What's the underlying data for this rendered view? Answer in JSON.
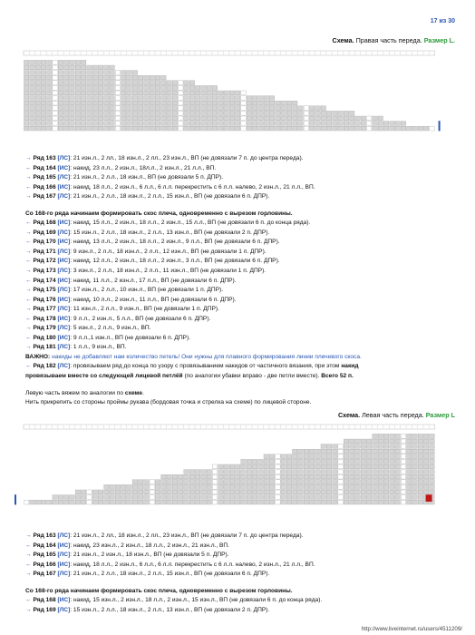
{
  "page_number": "17 из 30",
  "schemes": [
    {
      "title": "Схема.",
      "subtitle": "Правая часть переда.",
      "size": "Размер L."
    },
    {
      "title": "Схема.",
      "subtitle": "Левая часть переда.",
      "size": "Размер L"
    }
  ],
  "rows_a": [
    {
      "arrow": "→",
      "label": "Ряд 163",
      "side": "[ЛС]",
      "text": ": 21 изн.л., 2 лл., 18 изн.л., 2 лл., 23 изн.л., ВП (не довязали 7 п. до центра переда)."
    },
    {
      "arrow": "←",
      "label": "Ряд 164",
      "side": "[ИС]",
      "text": ": накид, 23 л.л., 2 изн.л., 18л.л., 2 изн.л., 21 л.л., ВП."
    },
    {
      "arrow": "→",
      "label": "Ряд 165",
      "side": "[ЛС]",
      "text": ": 21 изн.л., 2 л.л., 18 изн.л., ВП (не довязали 5 п. ДПР)."
    },
    {
      "arrow": "←",
      "label": "Ряд 166",
      "side": "[ИС]",
      "text": ": накид, 18 л.л., 2 изн.л., 6 л.л., 6 л.л. перекрестить с 6 л.л. налево, 2 изн.л., 21 л.л., ВП."
    },
    {
      "arrow": "→",
      "label": "Ряд 167",
      "side": "[ЛС]",
      "text": ": 21 изн.л., 2 л.л., 18 изн.л., 2 л.л., 15 изн.л., ВП (не довязали 6 п. ДПР)."
    }
  ],
  "note_a": "Со 168-го ряда начинаем формировать скос плеча, одновременно с вырезом горловины.",
  "rows_b": [
    {
      "arrow": "←",
      "label": "Ряд 168",
      "side": "[ИС]",
      "text": ": накид, 15 л.л., 2 изн.л., 18 л.л., 2 изн.л., 15 л.л., ВП (не довязали 6 п. до конца ряда)."
    },
    {
      "arrow": "→",
      "label": "Ряд 169",
      "side": "[ЛС]",
      "text": ": 15 изн.л., 2 л.л., 18 изн.л., 2 л.л., 13 изн.л., ВП (не довязали 2 п. ДПР)."
    },
    {
      "arrow": "←",
      "label": "Ряд 170",
      "side": "[ИС]",
      "text": ": накид, 13 л.л., 2 изн.л., 18 л.л., 2 изн.л., 9 л.л., ВП (не довязали 6 п. ДПР)."
    },
    {
      "arrow": "→",
      "label": "Ряд 171",
      "side": "[ЛС]",
      "text": ": 9 изн.л., 2 л.л., 18 изн.л., 2 л.л., 12 изн.л., ВП (не довязали 1 п. ДПР)."
    },
    {
      "arrow": "←",
      "label": "Ряд 172",
      "side": "[ИС]",
      "text": ": накид, 12 л.л., 2 изн.л., 18 л.л., 2 изн.л., 3 л.л., ВП (не довязали 6 п. ДПР)."
    },
    {
      "arrow": "→",
      "label": "Ряд 173",
      "side": "[ЛС]",
      "text": ": 3 изн.л., 2 л.л., 18 изн.л., 2 л.л., 11 изн.л., ВП (не довязали 1 п. ДПР)."
    },
    {
      "arrow": "←",
      "label": "Ряд 174",
      "side": "[ИС]",
      "text": ": накид, 11 л.л., 2 изн.л., 17 л.л., ВП (не довязали 6 п. ДПР)."
    },
    {
      "arrow": "→",
      "label": "Ряд 175",
      "side": "[ЛС]",
      "text": ": 17 изн.л., 2 л.л., 10 изн.л., ВП (не довязали 1 п. ДПР)."
    },
    {
      "arrow": "←",
      "label": "Ряд 176",
      "side": "[ИС]",
      "text": ": накид, 10 л.л., 2 изн.л., 11 л.л., ВП (не довязали 6 п. ДПР)."
    },
    {
      "arrow": "→",
      "label": "Ряд 177",
      "side": "[ЛС]",
      "text": ": 11 изн.л., 2 л.л., 9 изн.л., ВП (не довязали 1 п. ДПР)."
    },
    {
      "arrow": "←",
      "label": "Ряд 178",
      "side": "[ИС]",
      "text": ": 9 л.л., 2 изн.л., 5 л.л., ВП (не довязали 6 п. ДПР)."
    },
    {
      "arrow": "→",
      "label": "Ряд 179",
      "side": "[ЛС]",
      "text": ": 5 изн.л., 2 л.л., 9 изн.л., ВП."
    },
    {
      "arrow": "←",
      "label": "Ряд 180",
      "side": "[ИС]",
      "text": ": 9 л.л.,1 изн.л., ВП (не довязали 6 п. ДПР)."
    },
    {
      "arrow": "→",
      "label": "Ряд 181",
      "side": "[ЛС]",
      "text": ": 1 л.л., 9 изн.л., ВП."
    }
  ],
  "important_label": "ВАЖНО:",
  "important_text": " накиды не добавляют нам количество петель! Они нужны для плавного формирования линии плечевого скоса.",
  "row_182": {
    "arrow": "←",
    "label": "Ряд 182",
    "side": "[ЛС]",
    "text1": ": провязываем ряд до конца по узору с провязыванием накидов от частичного вязания, при этом ",
    "bold1": "накид",
    "bold2": "провязываем вместе со следующей лицевой петлёй",
    "text2": " (по аналогии убавки вправо - две петли вместе). ",
    "bold3": "Всего 52 п."
  },
  "left_part_text1": "Левую часть вяжем по аналогии по ",
  "left_part_bold": "схеме",
  "left_part_text2": ".",
  "attach_thread": "Нить прикрепить со стороны проймы рукава (бордовая точка и стрелка на схеме) по лицевой стороне.",
  "rows_c": [
    {
      "arrow": "→",
      "label": "Ряд 163",
      "side": "[ЛС]",
      "text": ": 21 изн.л., 2 лл., 18 изн.л., 2 лл., 23 изн.л., ВП (не довязали 7 п. до центра переда)."
    },
    {
      "arrow": "←",
      "label": "Ряд 164",
      "side": "[ИС]",
      "text": ": накид, 23 изн.л., 2 изн.л., 18 л.л., 2 изн.л., 21 изн.л., ВП."
    },
    {
      "arrow": "→",
      "label": "Ряд 165",
      "side": "[ЛС]",
      "text": ": 21 изн.л., 2 изн.л., 18 изн.л., ВП (не довязали 5 п. ДПР)."
    },
    {
      "arrow": "←",
      "label": "Ряд 166",
      "side": "[ИС]",
      "text": ": накид, 18 л.л., 2 изн.л., 6 л.л., 6 л.л. перекрестить с 6 л.л. налево, 2 изн.л., 21 л.л., ВП."
    },
    {
      "arrow": "→",
      "label": "Ряд 167",
      "side": "[ЛС]",
      "text": ": 21 изн.л., 2 л.л., 18 изн.л., 2 л.л., 15 изн.л., ВП (не довязали 6 п. ДПР)."
    }
  ],
  "note_c": "Со 168-го ряда начинаем формировать скос плеча, одновременно с вырезом горловины.",
  "rows_d": [
    {
      "arrow": "←",
      "label": "Ряд 168",
      "side": "[ИС]",
      "text": ": накид, 15 изн.л., 2 изн.л., 18 л.л., 2 изн.л., 15 изн.л., ВП (не довязали 6 п. до конца ряда)."
    },
    {
      "arrow": "→",
      "label": "Ряд 169",
      "side": "[ЛС]",
      "text": ": 15 изн.л., 2 л.л., 18 изн.л., 2 л.л., 13 изн.л., ВП (не довязали 2 п. ДПР)."
    }
  ],
  "watermark": "http://www.liveinternet.ru/users/4511209/",
  "colors": {
    "accent": "#2a56b0",
    "size_green": "#2a9a3a",
    "marker_red": "#c01818",
    "cell": "#d4d4d4"
  }
}
